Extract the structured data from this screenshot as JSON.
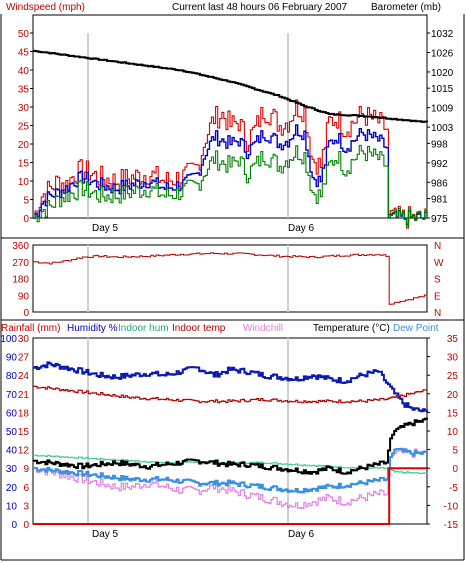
{
  "header": {
    "title": "Current last 48 hours 06 February 2007",
    "left_axis_title": "Windspeed (mph)",
    "right_axis_title": "Barometer (mb)"
  },
  "day_labels": [
    "Day 5",
    "Day 6"
  ],
  "middle": {
    "right_labels": [
      "N",
      "W",
      "S",
      "E",
      "N"
    ]
  },
  "bottom_header": {
    "rainfall": "Rainfall (mm)",
    "humidity": "Humidity %",
    "indoor_hum": "Indoor hum",
    "indoor_temp": "Indoor temp",
    "windchill": "Windchill",
    "temperature": "Temperature (°C)",
    "dew_point": "Dew Point"
  },
  "colors": {
    "gust": "#e00000",
    "avg": "#0000cc",
    "low": "#008000",
    "barometer": "#000000",
    "direction": "#b00000",
    "humidity": "#0a1ab0",
    "indoor_hum": "#40d090",
    "indoor_temp": "#b00000",
    "windchill": "#e080e0",
    "temperature": "#000000",
    "dew": "#3a90e0",
    "rain": "#e00000",
    "axis_red": "#c00000",
    "axis_blue": "#0000c0"
  },
  "chart_data": [
    {
      "type": "line",
      "title": "Current last 48 hours 06 February 2007",
      "ylabel": "Windspeed (mph)",
      "ylim": [
        0,
        50
      ],
      "yticks": [
        0,
        5,
        10,
        15,
        20,
        25,
        30,
        35,
        40,
        45,
        50
      ],
      "y2label": "Barometer (mb)",
      "y2lim": [
        975,
        1032
      ],
      "y2ticks": [
        975,
        981,
        986,
        992,
        998,
        1003,
        1009,
        1015,
        1020,
        1026,
        1032
      ],
      "x_labels": [
        "Day 5",
        "Day 6"
      ],
      "series": [
        {
          "key": "gust",
          "axis": "y",
          "x": [
            0,
            1,
            2,
            3,
            4,
            5,
            6,
            7,
            8,
            10,
            12,
            14,
            16,
            18,
            19,
            20,
            21,
            22,
            23,
            24,
            25,
            26,
            27,
            28,
            29,
            30,
            31,
            32,
            33,
            34,
            35,
            36,
            37,
            38,
            39,
            40,
            41,
            42,
            43,
            43.3,
            44,
            48
          ],
          "values": [
            0,
            6,
            8,
            10,
            9,
            12,
            13,
            12,
            11,
            10,
            11,
            12,
            10,
            11,
            12,
            14,
            22,
            27,
            28,
            25,
            26,
            21,
            24,
            29,
            28,
            25,
            26,
            30,
            29,
            16,
            14,
            26,
            27,
            24,
            26,
            28,
            27,
            26,
            24,
            1,
            0,
            0
          ]
        },
        {
          "key": "avg",
          "axis": "y",
          "x": [
            0,
            1,
            2,
            3,
            4,
            5,
            6,
            7,
            8,
            10,
            12,
            14,
            16,
            18,
            19,
            20,
            21,
            22,
            23,
            24,
            25,
            26,
            27,
            28,
            29,
            30,
            31,
            32,
            33,
            34,
            35,
            36,
            37,
            38,
            39,
            40,
            41,
            42,
            43,
            43.3,
            44,
            48
          ],
          "values": [
            0,
            4,
            6,
            7,
            8,
            10,
            11,
            10,
            9,
            8,
            9,
            10,
            8,
            9,
            10,
            12,
            18,
            22,
            21,
            20,
            21,
            18,
            20,
            23,
            22,
            20,
            21,
            24,
            23,
            11,
            10,
            20,
            22,
            19,
            21,
            23,
            22,
            21,
            19,
            0,
            0,
            0
          ]
        },
        {
          "key": "low",
          "axis": "y",
          "x": [
            0,
            1,
            2,
            3,
            4,
            5,
            6,
            7,
            8,
            10,
            12,
            14,
            16,
            18,
            19,
            20,
            21,
            22,
            23,
            24,
            25,
            26,
            27,
            28,
            29,
            30,
            31,
            32,
            33,
            34,
            35,
            36,
            37,
            38,
            39,
            40,
            41,
            42,
            43,
            43.3,
            44,
            48
          ],
          "values": [
            0,
            2,
            3,
            5,
            6,
            7,
            8,
            7,
            6,
            6,
            7,
            8,
            6,
            7,
            8,
            9,
            13,
            16,
            15,
            14,
            16,
            12,
            14,
            17,
            16,
            14,
            16,
            18,
            17,
            7,
            6,
            14,
            17,
            13,
            16,
            18,
            17,
            16,
            14,
            0,
            0,
            0
          ]
        },
        {
          "key": "barometer",
          "axis": "y2",
          "x": [
            0,
            6,
            12,
            18,
            24,
            30,
            33,
            36,
            40,
            44,
            48
          ],
          "values": [
            1026.5,
            1024.5,
            1022.5,
            1020.5,
            1017,
            1012.5,
            1009.5,
            1007,
            1006.5,
            1005.5,
            1004.5
          ]
        }
      ]
    },
    {
      "type": "line",
      "ylim": [
        0,
        360
      ],
      "yticks": [
        0,
        90,
        180,
        270,
        360
      ],
      "y2ticks": [
        "N",
        "W",
        "S",
        "E",
        "N"
      ],
      "x_labels": [
        "Day 5",
        "Day 6"
      ],
      "series": [
        {
          "key": "direction",
          "x": [
            0,
            2,
            4,
            6,
            8,
            10,
            14,
            18,
            22,
            26,
            30,
            34,
            38,
            42,
            43.3,
            43.4,
            48
          ],
          "values": [
            270,
            262,
            275,
            295,
            300,
            295,
            300,
            310,
            315,
            312,
            300,
            295,
            305,
            310,
            300,
            45,
            90
          ]
        }
      ]
    },
    {
      "type": "line",
      "y_left_rain": {
        "label": "Rainfall (mm)",
        "ticks": [
          0,
          3,
          6,
          9,
          12,
          15,
          18,
          21,
          24,
          27,
          30
        ]
      },
      "y_left_hum": {
        "label": "Humidity %",
        "ticks": [
          0,
          10,
          20,
          30,
          40,
          50,
          60,
          70,
          80,
          90,
          100
        ]
      },
      "y_right": {
        "label": "Temperature (°C)",
        "ticks": [
          -15,
          -10,
          -5,
          0,
          5,
          10,
          15,
          20,
          25,
          30,
          35
        ]
      },
      "ylim_temp": [
        -15,
        35
      ],
      "x_labels": [
        "Day 5",
        "Day 6"
      ],
      "series": [
        {
          "key": "humidity",
          "axis": "humidity",
          "x": [
            0,
            2,
            4,
            6,
            8,
            10,
            12,
            14,
            16,
            18,
            20,
            22,
            24,
            26,
            28,
            30,
            32,
            34,
            36,
            38,
            40,
            42,
            43,
            44,
            45,
            46,
            48
          ],
          "values": [
            84,
            86,
            84,
            82,
            80,
            79,
            80,
            81,
            80,
            82,
            84,
            80,
            83,
            82,
            80,
            79,
            78,
            80,
            78,
            77,
            80,
            82,
            76,
            70,
            65,
            62,
            60
          ]
        },
        {
          "key": "indoor_hum",
          "axis": "humidity",
          "x": [
            0,
            4,
            8,
            12,
            16,
            20,
            24,
            28,
            32,
            36,
            40,
            43,
            44,
            48
          ],
          "values": [
            37,
            36,
            35,
            34,
            33,
            33,
            33,
            33,
            32,
            31,
            30,
            30,
            28,
            27
          ]
        },
        {
          "key": "indoor_temp",
          "axis": "temp",
          "x": [
            0,
            4,
            8,
            12,
            16,
            20,
            24,
            28,
            32,
            36,
            40,
            43,
            44,
            46,
            48
          ],
          "values": [
            22,
            21,
            20,
            19,
            18.5,
            18,
            18,
            18.5,
            18,
            18,
            18,
            18.5,
            19,
            20,
            21
          ]
        },
        {
          "key": "windchill",
          "axis": "temp",
          "x": [
            0,
            2,
            4,
            6,
            8,
            10,
            12,
            14,
            16,
            18,
            20,
            22,
            24,
            26,
            28,
            30,
            32,
            34,
            36,
            38,
            40,
            42,
            43,
            43.5,
            44,
            48
          ],
          "values": [
            0,
            -1,
            -2,
            -3,
            -4,
            -5,
            -5,
            -4,
            -5,
            -6,
            -6,
            -5,
            -6,
            -7,
            -8,
            -9,
            -10,
            -9,
            -8,
            -9,
            -8,
            -7,
            -7,
            3,
            4,
            4
          ]
        },
        {
          "key": "temperature",
          "axis": "temp",
          "x": [
            0,
            2,
            4,
            6,
            8,
            10,
            12,
            14,
            16,
            18,
            20,
            22,
            24,
            26,
            28,
            30,
            32,
            34,
            36,
            38,
            40,
            42,
            43,
            43.5,
            44,
            45,
            46,
            48
          ],
          "values": [
            2,
            1.5,
            1,
            0.5,
            1,
            1.5,
            1,
            0.5,
            1,
            1.5,
            2,
            1.5,
            1,
            1,
            0.5,
            0,
            -0.5,
            -1,
            0,
            -1,
            0,
            1,
            1.5,
            8,
            10,
            11,
            12,
            13
          ]
        },
        {
          "key": "dew",
          "axis": "temp",
          "x": [
            0,
            4,
            8,
            12,
            16,
            20,
            24,
            28,
            32,
            36,
            40,
            43,
            43.5,
            44,
            46,
            48
          ],
          "values": [
            0,
            -1,
            -2,
            -3,
            -3,
            -4,
            -4,
            -5,
            -6,
            -5,
            -4,
            -3,
            3,
            5,
            4,
            4
          ]
        },
        {
          "key": "rain",
          "axis": "rain",
          "x": [
            0,
            43.3,
            43.4,
            48
          ],
          "values": [
            0,
            0,
            9,
            9
          ]
        }
      ]
    }
  ]
}
